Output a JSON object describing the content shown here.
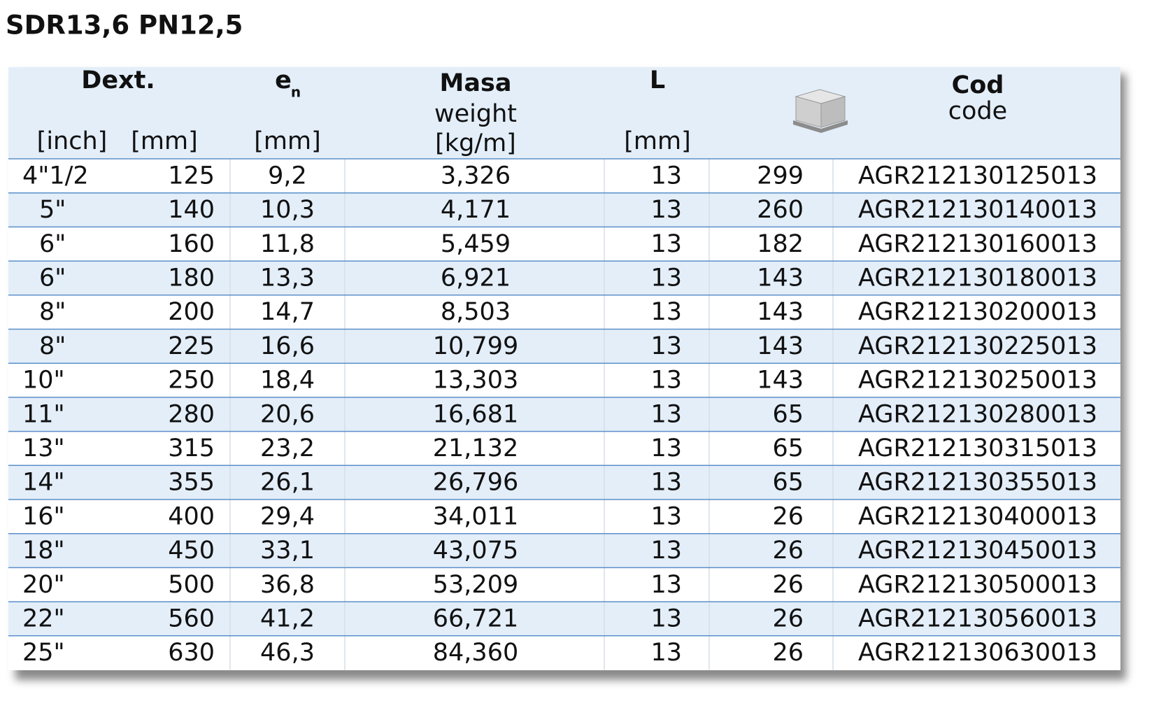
{
  "title": "SDR13,6 PN12,5",
  "header": {
    "dext": "Dext.",
    "inch": "[inch]",
    "dext_mm": "[mm]",
    "en": "e",
    "en_sub": "n",
    "en_mm": "[mm]",
    "masa": "Masa",
    "weight": "weight",
    "kgm": "[kg/m]",
    "l": "L",
    "l_mm": "[mm]",
    "cod": "Cod",
    "code": "code"
  },
  "table": {
    "rows": [
      [
        "4\"1/2",
        "125",
        "9,2",
        "3,326",
        "13",
        "299",
        "AGR212130125013"
      ],
      [
        "5\"",
        "140",
        "10,3",
        "4,171",
        "13",
        "260",
        "AGR212130140013"
      ],
      [
        "6\"",
        "160",
        "11,8",
        "5,459",
        "13",
        "182",
        "AGR212130160013"
      ],
      [
        "6\"",
        "180",
        "13,3",
        "6,921",
        "13",
        "143",
        "AGR212130180013"
      ],
      [
        "8\"",
        "200",
        "14,7",
        "8,503",
        "13",
        "143",
        "AGR212130200013"
      ],
      [
        "8\"",
        "225",
        "16,6",
        "10,799",
        "13",
        "143",
        "AGR212130225013"
      ],
      [
        "10\"",
        "250",
        "18,4",
        "13,303",
        "13",
        "143",
        "AGR212130250013"
      ],
      [
        "11\"",
        "280",
        "20,6",
        "16,681",
        "13",
        "65",
        "AGR212130280013"
      ],
      [
        "13\"",
        "315",
        "23,2",
        "21,132",
        "13",
        "65",
        "AGR212130315013"
      ],
      [
        "14\"",
        "355",
        "26,1",
        "26,796",
        "13",
        "65",
        "AGR212130355013"
      ],
      [
        "16\"",
        "400",
        "29,4",
        "34,011",
        "13",
        "26",
        "AGR212130400013"
      ],
      [
        "18\"",
        "450",
        "33,1",
        "43,075",
        "13",
        "26",
        "AGR212130450013"
      ],
      [
        "20\"",
        "500",
        "36,8",
        "53,209",
        "13",
        "26",
        "AGR212130500013"
      ],
      [
        "22\"",
        "560",
        "41,2",
        "66,721",
        "13",
        "26",
        "AGR212130560013"
      ],
      [
        "25\"",
        "630",
        "46,3",
        "84,360",
        "13",
        "26",
        "AGR212130630013"
      ]
    ]
  }
}
